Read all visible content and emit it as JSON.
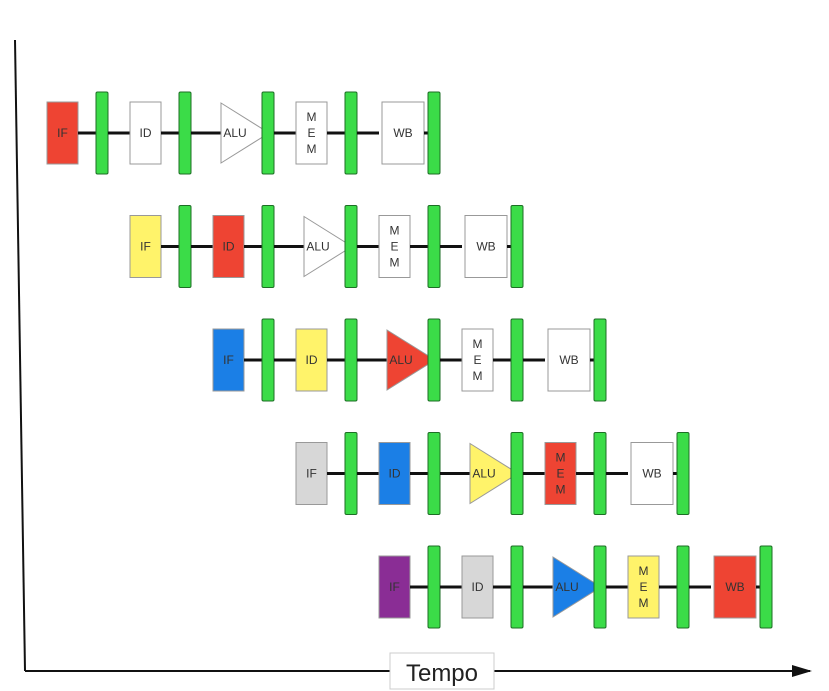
{
  "axis": {
    "x_label": "Tempo"
  },
  "labels": {
    "IF": "IF",
    "ID": "ID",
    "ALU": "ALU",
    "MEM": "MEM",
    "WB": "WB"
  },
  "colors": {
    "red": "#ee4433",
    "yellow": "#fff36a",
    "blue": "#1b7fe6",
    "gray": "#d7d7d7",
    "purple": "#8a2d95",
    "white": "#ffffff",
    "register": "#3bdc48",
    "line": "#111111"
  },
  "pipeline": {
    "stage_order": [
      "IF",
      "ID",
      "ALU",
      "MEM",
      "WB"
    ],
    "instructions": [
      {
        "name": "instruction-1",
        "start_cycle": 0,
        "colors": [
          "red",
          "white",
          "white",
          "white",
          "white"
        ]
      },
      {
        "name": "instruction-2",
        "start_cycle": 1,
        "colors": [
          "yellow",
          "red",
          "white",
          "white",
          "white"
        ]
      },
      {
        "name": "instruction-3",
        "start_cycle": 2,
        "colors": [
          "blue",
          "yellow",
          "red",
          "white",
          "white"
        ]
      },
      {
        "name": "instruction-4",
        "start_cycle": 3,
        "colors": [
          "gray",
          "blue",
          "yellow",
          "red",
          "white"
        ]
      },
      {
        "name": "instruction-5",
        "start_cycle": 4,
        "colors": [
          "purple",
          "gray",
          "blue",
          "yellow",
          "red"
        ]
      }
    ]
  }
}
